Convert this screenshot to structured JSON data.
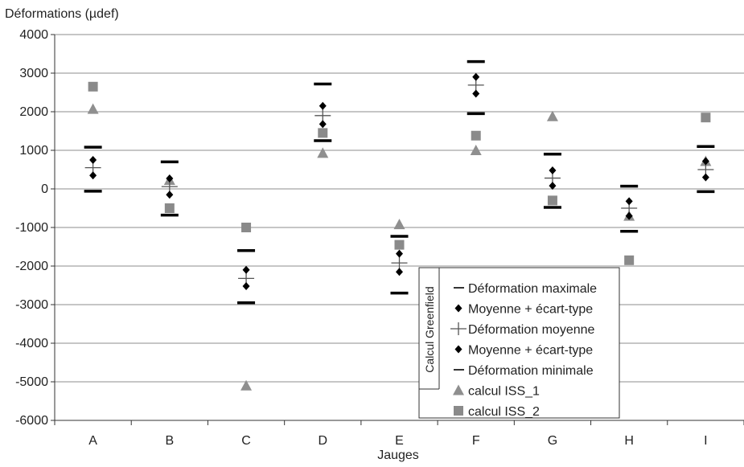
{
  "chart_data": {
    "type": "scatter",
    "ylabel": "Déformations (µdef)",
    "xlabel": "Jauges",
    "categories": [
      "A",
      "B",
      "C",
      "D",
      "E",
      "F",
      "G",
      "H",
      "I"
    ],
    "ylim": [
      -6000,
      4000
    ],
    "yticks": [
      4000,
      3000,
      2000,
      1000,
      0,
      -1000,
      -2000,
      -3000,
      -4000,
      -5000,
      -6000
    ],
    "grid": "horizontal",
    "legend_group_label": "Calcul Greenfield",
    "legend_placement": "bottom-right",
    "series": [
      {
        "name": "Déformation maximale",
        "marker": "dash",
        "color": "#000000",
        "values": [
          1080,
          700,
          -1600,
          2720,
          -1230,
          3300,
          900,
          70,
          1100
        ]
      },
      {
        "name": "Moyenne + écart-type",
        "marker": "diamond",
        "color": "#000000",
        "values": [
          750,
          270,
          -2100,
          2150,
          -1680,
          2900,
          480,
          -320,
          720
        ]
      },
      {
        "name": "Déformation moyenne",
        "marker": "plus",
        "color": "#555555",
        "values": [
          550,
          60,
          -2320,
          1900,
          -1920,
          2690,
          280,
          -500,
          500
        ]
      },
      {
        "name": "Moyenne + écart-type",
        "marker": "diamond",
        "color": "#000000",
        "values": [
          350,
          -150,
          -2520,
          1680,
          -2150,
          2470,
          80,
          -700,
          300
        ]
      },
      {
        "name": "Déformation minimale",
        "marker": "dash",
        "color": "#000000",
        "values": [
          -60,
          -680,
          -2950,
          1250,
          -2700,
          1950,
          -480,
          -1100,
          -70
        ]
      },
      {
        "name": "calcul ISS_1",
        "marker": "triangle",
        "color": "#8f8f8f",
        "values": [
          2070,
          230,
          -5100,
          930,
          -920,
          1000,
          1880,
          -700,
          720
        ]
      },
      {
        "name": "calcul ISS_2",
        "marker": "square",
        "color": "#8a8a8a",
        "values": [
          2650,
          -500,
          -1000,
          1450,
          -1450,
          1380,
          -300,
          -1850,
          1850
        ]
      }
    ]
  }
}
